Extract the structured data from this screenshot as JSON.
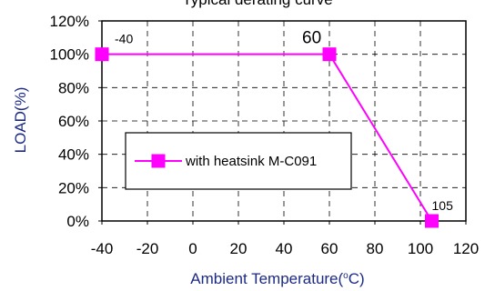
{
  "chart_data": {
    "type": "line",
    "title_fragment": "Typical derating curve",
    "xlabel_main": "Ambient Temperature(",
    "xlabel_deg": "o",
    "xlabel_tail": "C)",
    "ylabel": "LOAD(%)",
    "xlim": [
      -40,
      120
    ],
    "ylim": [
      0,
      120
    ],
    "x_ticks": [
      -40,
      -20,
      0,
      20,
      40,
      60,
      80,
      100,
      120
    ],
    "y_ticks": [
      0,
      20,
      40,
      60,
      80,
      100,
      120
    ],
    "y_tick_labels": [
      "0%",
      "20%",
      "40%",
      "60%",
      "80%",
      "100%",
      "120%"
    ],
    "grid": true,
    "series": [
      {
        "name": "with heatsink M-C091",
        "color": "#ff00ff",
        "marker": "square",
        "x": [
          -40,
          60,
          105
        ],
        "y": [
          100,
          100,
          0
        ]
      }
    ],
    "annotations": [
      {
        "text": "-40",
        "x": -40
      },
      {
        "text": "60",
        "x": 60
      },
      {
        "text": "105",
        "x": 105
      }
    ],
    "legend_position": "center-left"
  }
}
